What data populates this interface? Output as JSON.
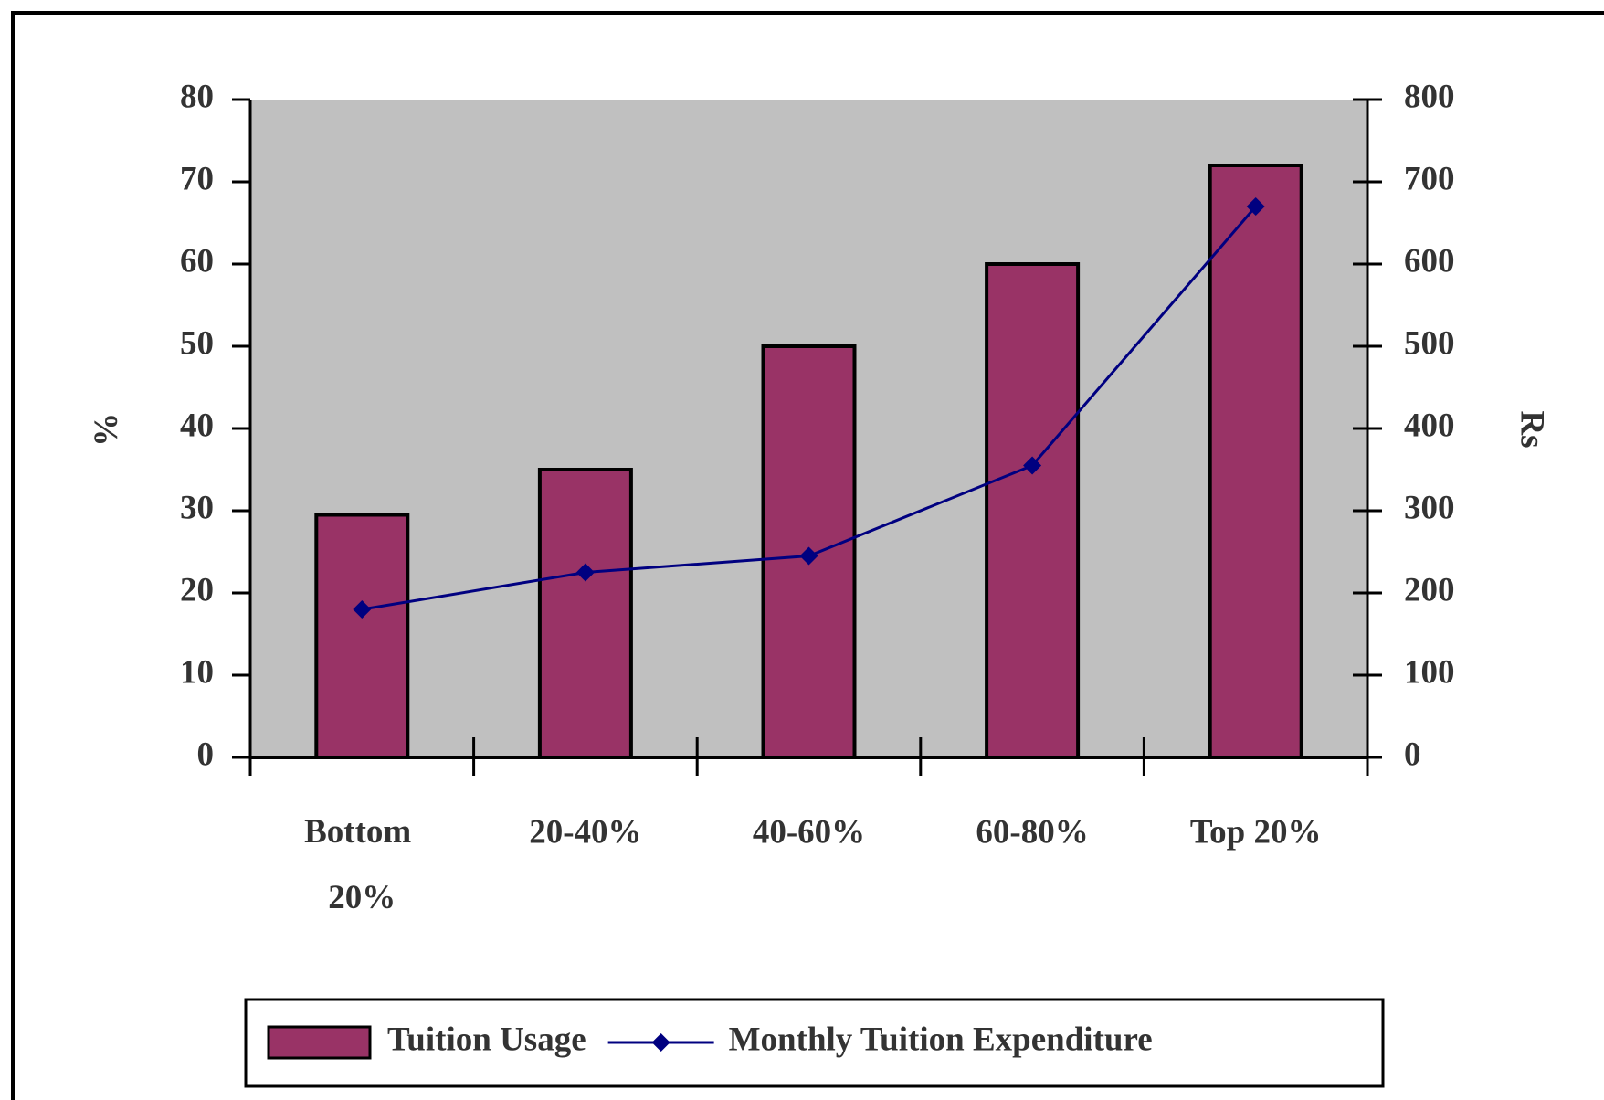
{
  "chart_data": {
    "type": "bar",
    "categories": [
      "Bottom 20%",
      "20-40%",
      "40-60%",
      "60-80%",
      "Top 20%"
    ],
    "series": [
      {
        "name": "Tuition Usage",
        "type": "bar",
        "color": "#993366",
        "values": [
          29.5,
          35,
          50,
          60,
          72
        ]
      },
      {
        "name": "Monthly Tuition Expenditure",
        "type": "line",
        "axis": "y2",
        "color": "#000080",
        "values": [
          180,
          225,
          245,
          355,
          670
        ]
      }
    ],
    "ylabel": "%",
    "y2label": "Rs",
    "ylim": [
      0,
      80
    ],
    "yticks": [
      0,
      10,
      20,
      30,
      40,
      50,
      60,
      70,
      80
    ],
    "y2lim": [
      0,
      800
    ],
    "y2ticks": [
      0,
      100,
      200,
      300,
      400,
      500,
      600,
      700,
      800
    ],
    "plot_background": "#c0c0c0",
    "grid": false,
    "legend": "bottom"
  }
}
